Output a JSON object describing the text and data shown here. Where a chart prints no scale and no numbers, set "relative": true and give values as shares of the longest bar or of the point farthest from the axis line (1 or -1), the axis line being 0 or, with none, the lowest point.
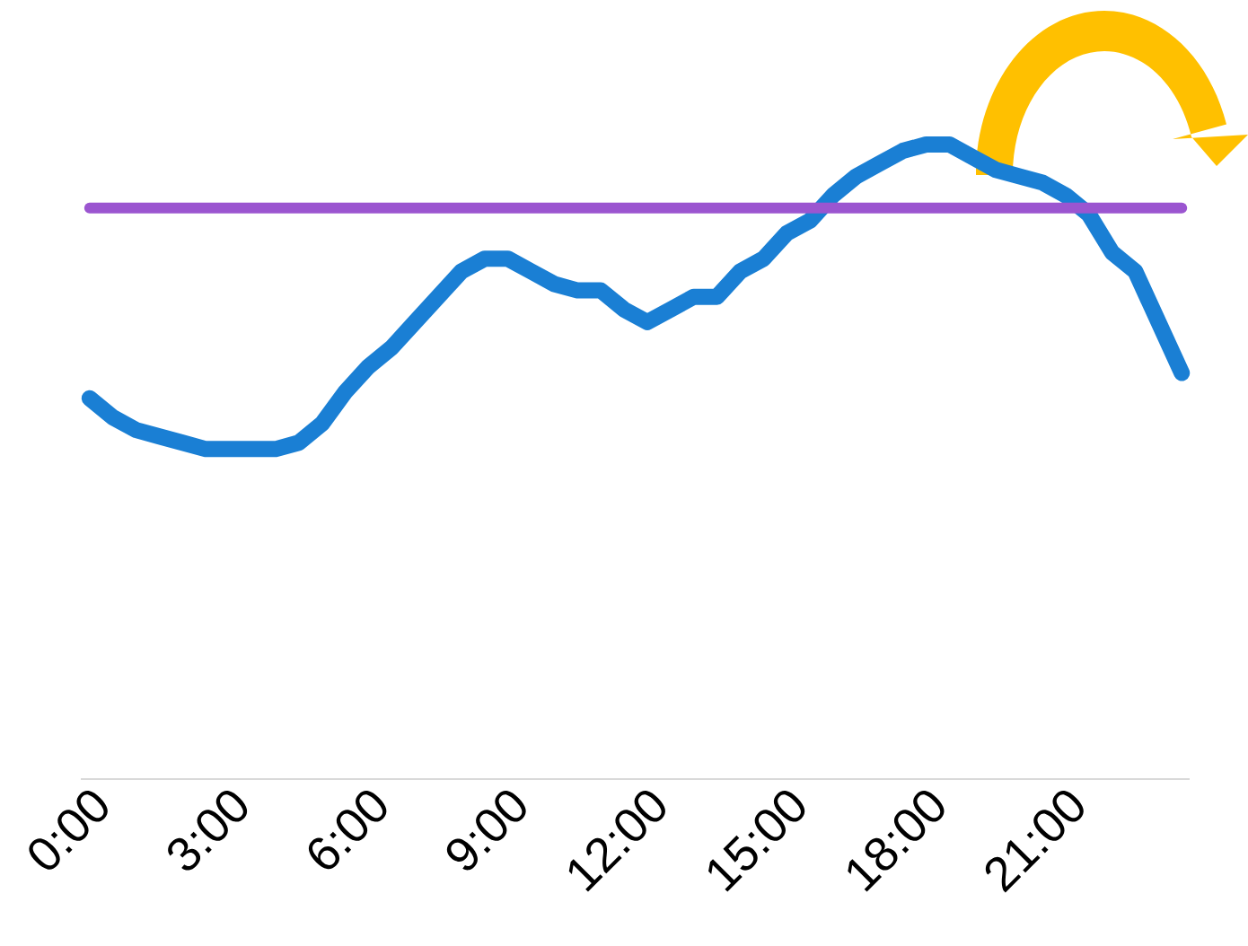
{
  "chart_data": {
    "type": "line",
    "relative": true,
    "x": [
      0,
      0.5,
      1,
      1.5,
      2,
      2.5,
      3,
      3.5,
      4,
      4.5,
      5,
      5.5,
      6,
      6.5,
      7,
      7.5,
      8,
      8.5,
      9,
      9.5,
      10,
      10.5,
      11,
      11.5,
      12,
      12.5,
      13,
      13.5,
      14,
      14.5,
      15,
      15.5,
      16,
      16.5,
      17,
      17.5,
      18,
      18.5,
      19,
      19.5,
      20,
      20.5,
      21,
      21.5,
      22,
      22.5,
      23,
      23.5
    ],
    "series": [
      {
        "color": "#1a7fd4",
        "values": [
          0.6,
          0.57,
          0.55,
          0.54,
          0.53,
          0.52,
          0.52,
          0.52,
          0.52,
          0.53,
          0.56,
          0.61,
          0.65,
          0.68,
          0.72,
          0.76,
          0.8,
          0.82,
          0.82,
          0.8,
          0.78,
          0.77,
          0.77,
          0.74,
          0.72,
          0.74,
          0.76,
          0.76,
          0.8,
          0.82,
          0.86,
          0.88,
          0.92,
          0.95,
          0.97,
          0.99,
          1,
          1,
          0.98,
          0.96,
          0.95,
          0.94,
          0.92,
          0.89,
          0.83,
          0.8,
          0.72,
          0.64
        ]
      }
    ],
    "xlim": [
      -0.19,
      23.67
    ],
    "xticks": [
      {
        "value": 0,
        "label": "0:00"
      },
      {
        "value": 3,
        "label": "3:00"
      },
      {
        "value": 6,
        "label": "6:00"
      },
      {
        "value": 9,
        "label": "9:00"
      },
      {
        "value": 12,
        "label": "12:00"
      },
      {
        "value": 15,
        "label": "15:00"
      },
      {
        "value": 18,
        "label": "18:00"
      },
      {
        "value": 21,
        "label": "21:00"
      }
    ],
    "ref_lines": [
      {
        "axis": "y",
        "value": 0.9,
        "color": "#9b55d0"
      }
    ]
  }
}
